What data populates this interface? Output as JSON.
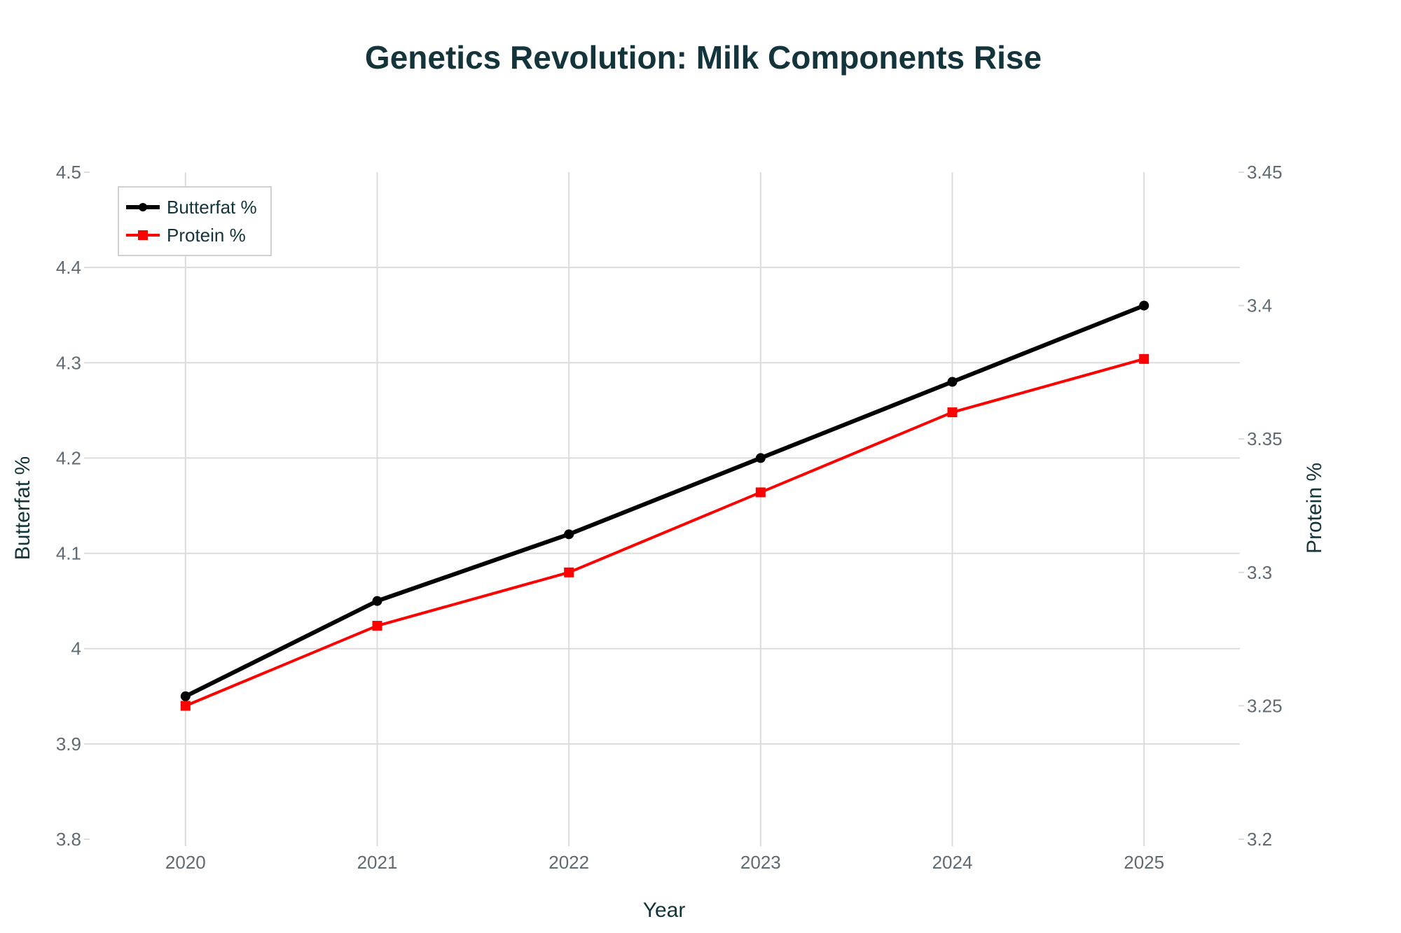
{
  "chart_data": {
    "type": "line",
    "title": "Genetics Revolution: Milk Components Rise",
    "xlabel": "Year",
    "ylabel": "Butterfat %",
    "y2label": "Protein %",
    "x": [
      2020,
      2021,
      2022,
      2023,
      2024,
      2025
    ],
    "x_tick_labels": [
      "2020",
      "2021",
      "2022",
      "2023",
      "2024",
      "2025"
    ],
    "xlim": [
      2019.5,
      2025.5
    ],
    "ylim": [
      3.8,
      4.5
    ],
    "y_ticks": [
      3.8,
      3.9,
      4.0,
      4.1,
      4.2,
      4.3,
      4.4,
      4.5
    ],
    "y_tick_labels": [
      "3.8",
      "3.9",
      "4",
      "4.1",
      "4.2",
      "4.3",
      "4.4",
      "4.5"
    ],
    "y2lim": [
      3.2,
      3.45
    ],
    "y2_ticks": [
      3.2,
      3.25,
      3.3,
      3.35,
      3.4,
      3.45
    ],
    "y2_tick_labels": [
      "3.2",
      "3.25",
      "3.3",
      "3.35",
      "3.4",
      "3.45"
    ],
    "grid": true,
    "legend_position": "top-left",
    "series": [
      {
        "name": "Butterfat %",
        "axis": "left",
        "color": "#000000",
        "marker": "circle",
        "values": [
          3.95,
          4.05,
          4.12,
          4.2,
          4.28,
          4.36
        ]
      },
      {
        "name": "Protein %",
        "axis": "right",
        "color": "#ff0000",
        "marker": "square",
        "values": [
          3.25,
          3.28,
          3.3,
          3.33,
          3.36,
          3.38
        ]
      }
    ]
  }
}
